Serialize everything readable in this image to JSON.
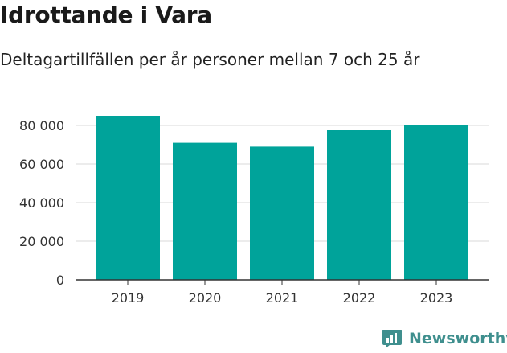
{
  "header": {
    "title": "Idrottande i Vara",
    "subtitle": "Deltagartillfällen per år personer mellan 7 och 25 år"
  },
  "brand": {
    "name": "Newsworthy",
    "icon": "newsworthy-logo-icon",
    "color": "#3f8f8e"
  },
  "colors": {
    "bar": "#00a39a",
    "grid": "#d9d9d9",
    "axis": "#333333",
    "text": "#333333"
  },
  "chart_data": {
    "type": "bar",
    "title": "Idrottande i Vara",
    "subtitle": "Deltagartillfällen per år personer mellan 7 och 25 år",
    "categories": [
      "2019",
      "2020",
      "2021",
      "2022",
      "2023"
    ],
    "values": [
      85000,
      71000,
      69000,
      77500,
      80000
    ],
    "ylim": [
      0,
      85000
    ],
    "yticks": [
      0,
      20000,
      40000,
      60000,
      80000
    ],
    "ytick_labels": [
      "0",
      "20 000",
      "40 000",
      "60 000",
      "80 000"
    ],
    "grid": true,
    "legend": "none"
  }
}
